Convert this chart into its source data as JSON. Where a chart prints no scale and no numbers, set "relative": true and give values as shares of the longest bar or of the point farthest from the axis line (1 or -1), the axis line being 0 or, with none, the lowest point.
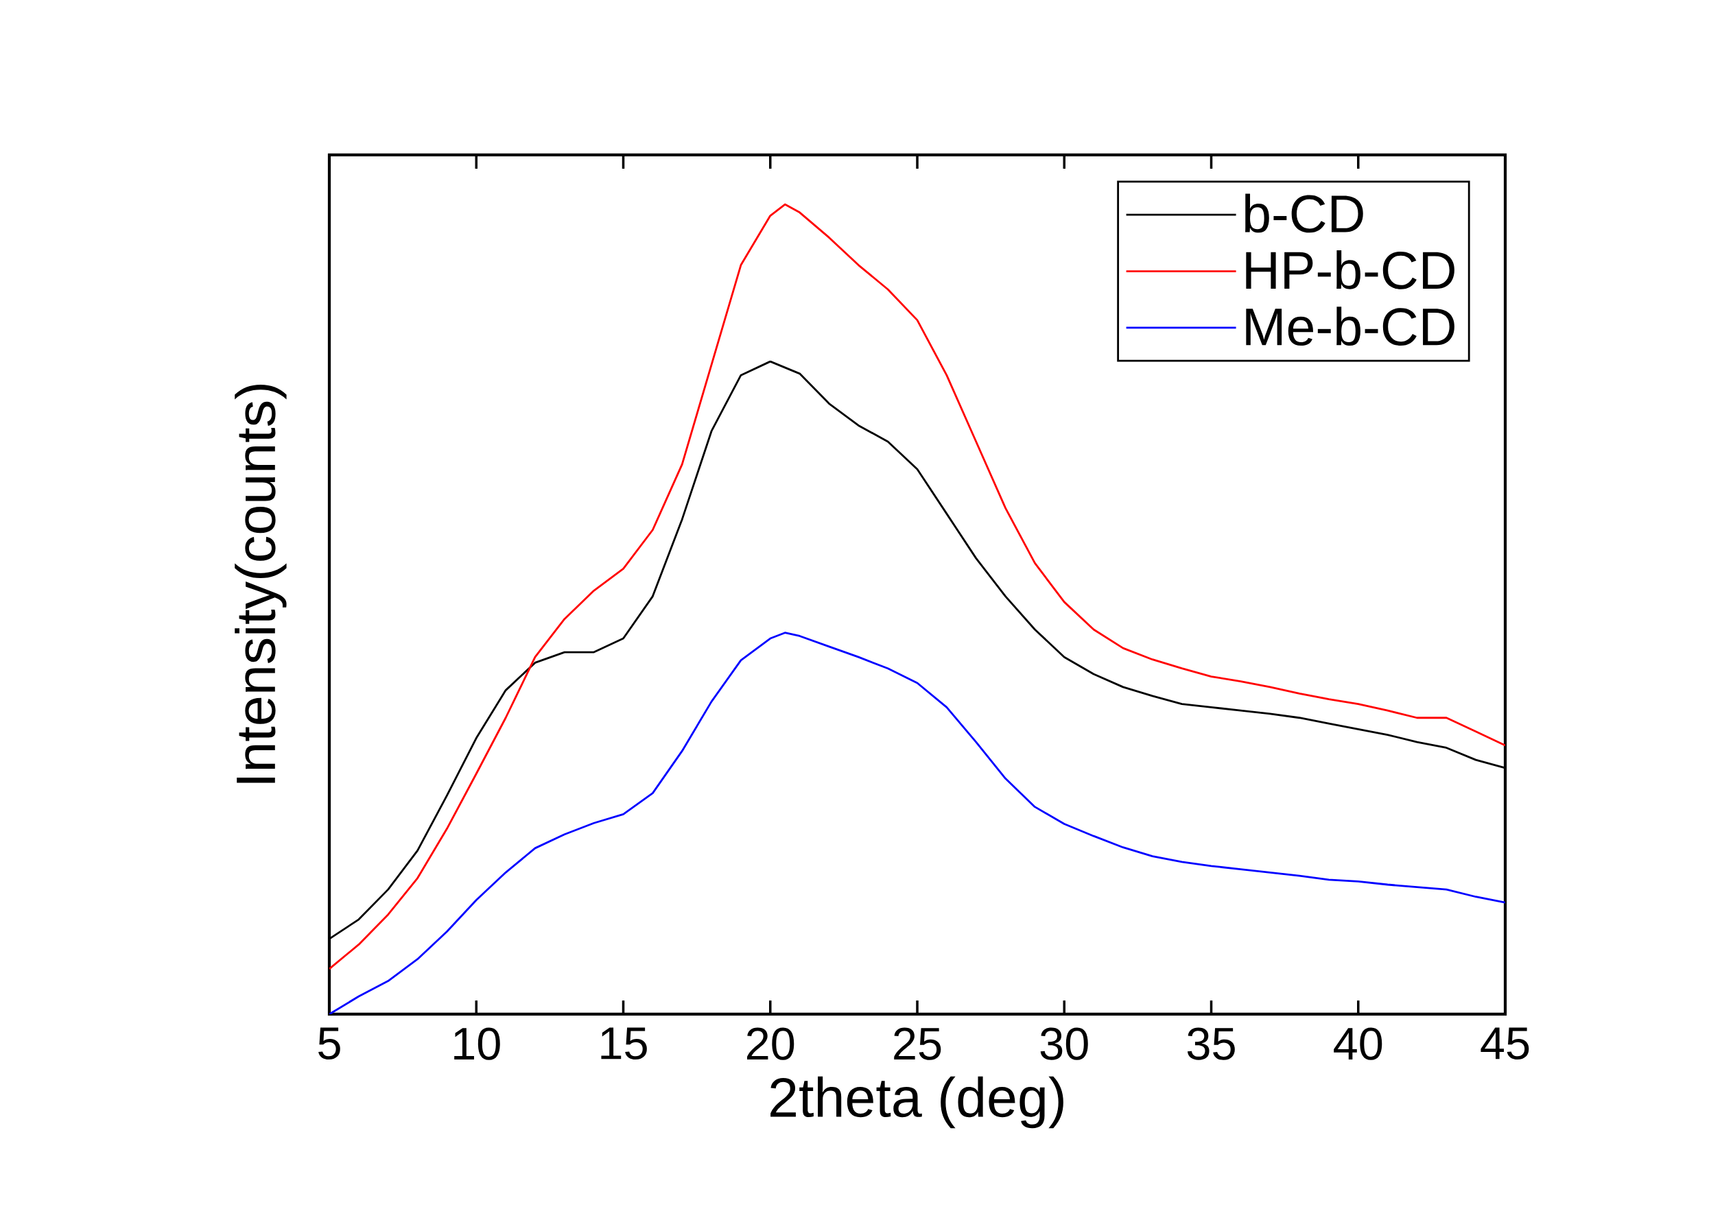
{
  "chart_data": {
    "type": "line",
    "xlabel": "2theta (deg)",
    "ylabel": "Intensity(counts)",
    "relative": true,
    "xlim": [
      5,
      45
    ],
    "xticks": [
      5,
      10,
      15,
      20,
      25,
      30,
      35,
      40,
      45
    ],
    "legend": "top right",
    "grid": false,
    "marker": "none",
    "line_style": "solid",
    "tick_labels": "x",
    "series": [
      {
        "name": "b-CD",
        "color": "#000000",
        "x": [
          5,
          6,
          7,
          8,
          9,
          10,
          11,
          12,
          13,
          14,
          15,
          16,
          17,
          18,
          19,
          20,
          21,
          22,
          23,
          24,
          25,
          26,
          27,
          28,
          29,
          30,
          31,
          32,
          33,
          34,
          35,
          36,
          37,
          38,
          39,
          40,
          41,
          42,
          43,
          44,
          45
        ],
        "values": [
          0.093,
          0.117,
          0.154,
          0.202,
          0.27,
          0.341,
          0.4,
          0.434,
          0.447,
          0.447,
          0.464,
          0.516,
          0.611,
          0.72,
          0.789,
          0.806,
          0.791,
          0.754,
          0.727,
          0.707,
          0.673,
          0.618,
          0.563,
          0.516,
          0.475,
          0.441,
          0.42,
          0.404,
          0.393,
          0.383,
          0.379,
          0.375,
          0.371,
          0.366,
          0.359,
          0.352,
          0.345,
          0.336,
          0.329,
          0.314,
          0.304
        ]
      },
      {
        "name": "HP-b-CD",
        "color": "#ff0000",
        "x": [
          5,
          6,
          7,
          8,
          9,
          10,
          11,
          12,
          13,
          14,
          15,
          16,
          17,
          18,
          19,
          20,
          20.5,
          21,
          22,
          23,
          24,
          25,
          26,
          27,
          28,
          29,
          30,
          31,
          32,
          33,
          34,
          35,
          36,
          37,
          38,
          39,
          40,
          41,
          42,
          43,
          44,
          45
        ],
        "values": [
          0.056,
          0.086,
          0.123,
          0.168,
          0.229,
          0.297,
          0.366,
          0.441,
          0.488,
          0.523,
          0.55,
          0.598,
          0.679,
          0.802,
          0.925,
          0.986,
          1,
          0.99,
          0.959,
          0.925,
          0.895,
          0.857,
          0.789,
          0.707,
          0.625,
          0.557,
          0.509,
          0.475,
          0.452,
          0.438,
          0.427,
          0.417,
          0.411,
          0.404,
          0.396,
          0.389,
          0.383,
          0.375,
          0.366,
          0.366,
          0.349,
          0.332
        ]
      },
      {
        "name": "Me-b-CD",
        "color": "#0000ff",
        "x": [
          5,
          6,
          7,
          8,
          9,
          10,
          11,
          12,
          13,
          14,
          15,
          16,
          17,
          18,
          19,
          20,
          20.5,
          21,
          22,
          23,
          24,
          25,
          26,
          27,
          28,
          29,
          30,
          31,
          32,
          33,
          34,
          35,
          36,
          37,
          38,
          39,
          40,
          41,
          42,
          43,
          44,
          45
        ],
        "values": [
          0,
          0.022,
          0.041,
          0.068,
          0.102,
          0.141,
          0.175,
          0.205,
          0.222,
          0.236,
          0.247,
          0.273,
          0.325,
          0.386,
          0.437,
          0.464,
          0.471,
          0.467,
          0.454,
          0.441,
          0.427,
          0.409,
          0.379,
          0.336,
          0.291,
          0.256,
          0.235,
          0.22,
          0.206,
          0.195,
          0.188,
          0.183,
          0.179,
          0.175,
          0.171,
          0.166,
          0.164,
          0.16,
          0.157,
          0.154,
          0.145,
          0.138
        ]
      }
    ]
  }
}
